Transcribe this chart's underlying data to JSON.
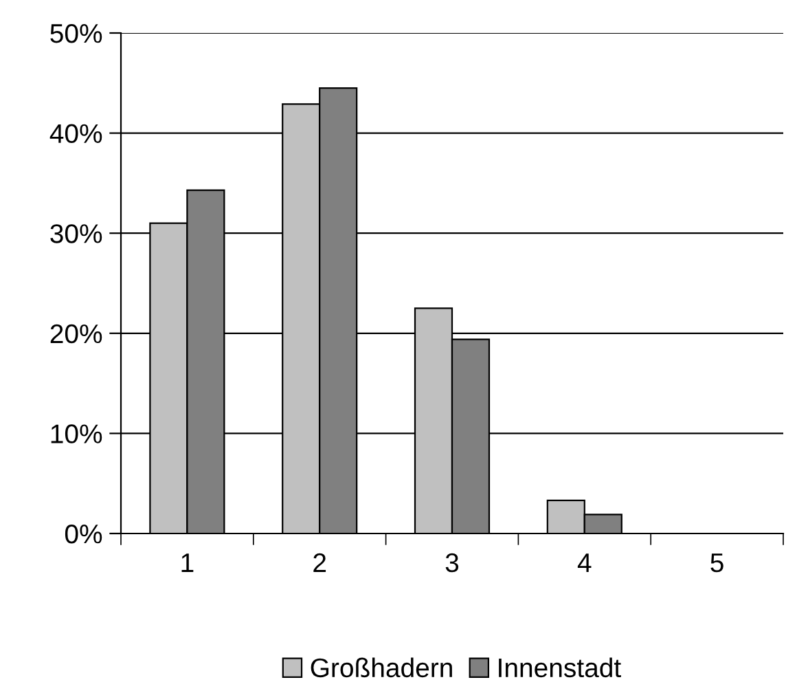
{
  "chart_data": {
    "type": "bar",
    "categories": [
      "1",
      "2",
      "3",
      "4",
      "5"
    ],
    "series": [
      {
        "name": "Großhadern",
        "color": "#c0c0c0",
        "values": [
          31,
          42.9,
          22.5,
          3.3,
          0
        ]
      },
      {
        "name": "Innenstadt",
        "color": "#808080",
        "values": [
          34.3,
          44.5,
          19.4,
          1.9,
          0
        ]
      }
    ],
    "ylim": [
      0,
      50
    ],
    "yticks": [
      {
        "value": 0,
        "label": "0%"
      },
      {
        "value": 10,
        "label": "10%"
      },
      {
        "value": 20,
        "label": "20%"
      },
      {
        "value": 30,
        "label": "30%"
      },
      {
        "value": 40,
        "label": "40%"
      },
      {
        "value": 50,
        "label": "50%"
      }
    ],
    "grid": "y",
    "legend": "bottom"
  }
}
